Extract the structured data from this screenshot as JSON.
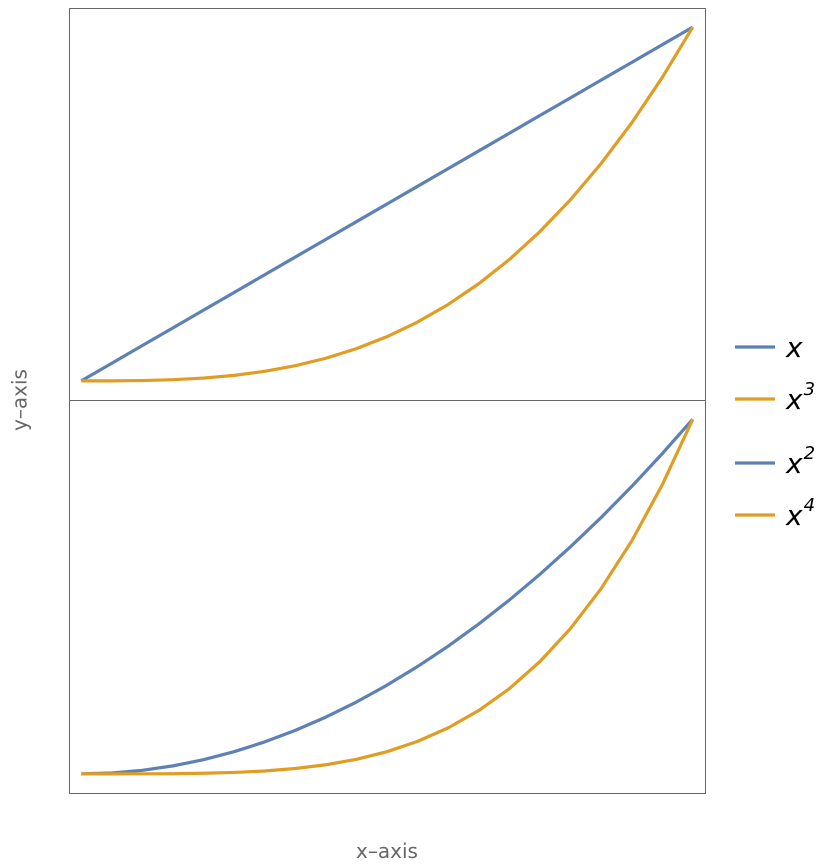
{
  "axis_labels": {
    "x": "x–axis",
    "y": "y–axis"
  },
  "chart_data": [
    {
      "type": "line",
      "xlim": [
        -0.02,
        1.02
      ],
      "ylim": [
        -0.054,
        1.054
      ],
      "x": [
        0,
        0.05,
        0.1,
        0.15,
        0.2,
        0.25,
        0.3,
        0.35,
        0.4,
        0.45,
        0.5,
        0.55,
        0.6,
        0.65,
        0.7,
        0.75,
        0.8,
        0.85,
        0.9,
        0.95,
        1
      ],
      "series": [
        {
          "name": "x",
          "color": "#5e81b5",
          "values": [
            0,
            0.05,
            0.1,
            0.15,
            0.2,
            0.25,
            0.3,
            0.35,
            0.4,
            0.45,
            0.5,
            0.55,
            0.6,
            0.65,
            0.7,
            0.75,
            0.8,
            0.85,
            0.9,
            0.95,
            1
          ]
        },
        {
          "name": "x",
          "exponent": "3",
          "color": "#e19c24",
          "values": [
            0,
            0.000125,
            0.001,
            0.003375,
            0.008,
            0.015625,
            0.027,
            0.042875,
            0.064,
            0.091125,
            0.125,
            0.166375,
            0.216,
            0.274625,
            0.343,
            0.421875,
            0.512,
            0.614125,
            0.729,
            0.857375,
            1
          ]
        }
      ]
    },
    {
      "type": "line",
      "xlim": [
        -0.02,
        1.02
      ],
      "ylim": [
        -0.054,
        1.054
      ],
      "x": [
        0,
        0.05,
        0.1,
        0.15,
        0.2,
        0.25,
        0.3,
        0.35,
        0.4,
        0.45,
        0.5,
        0.55,
        0.6,
        0.65,
        0.7,
        0.75,
        0.8,
        0.85,
        0.9,
        0.95,
        1
      ],
      "series": [
        {
          "name": "x",
          "exponent": "2",
          "color": "#5e81b5",
          "values": [
            0,
            0.0025,
            0.01,
            0.0225,
            0.04,
            0.0625,
            0.09,
            0.1225,
            0.16,
            0.2025,
            0.25,
            0.3025,
            0.36,
            0.4225,
            0.49,
            0.5625,
            0.64,
            0.7225,
            0.81,
            0.9025,
            1
          ]
        },
        {
          "name": "x",
          "exponent": "4",
          "color": "#e19c24",
          "values": [
            0,
            6.25e-06,
            0.0001,
            0.00050625,
            0.0016,
            0.00390625,
            0.0081,
            0.01500625,
            0.0256,
            0.04100625,
            0.0625,
            0.09150625,
            0.1296,
            0.17850625,
            0.2401,
            0.31640625,
            0.4096,
            0.52200625,
            0.6561,
            0.81450625,
            1
          ]
        }
      ]
    }
  ]
}
